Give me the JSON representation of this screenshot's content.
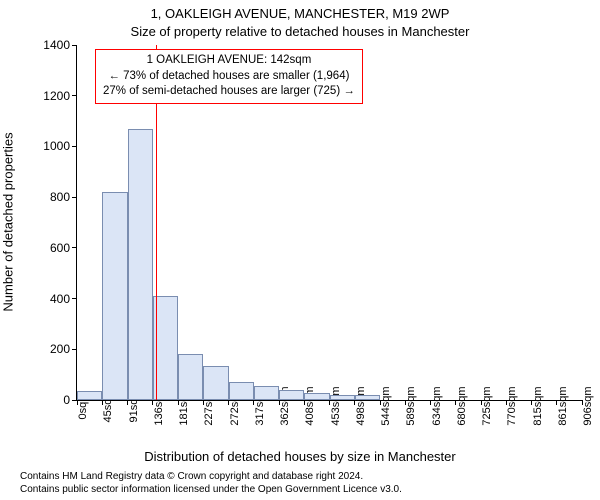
{
  "header": {
    "line1": "1, OAKLEIGH AVENUE, MANCHESTER, M19 2WP",
    "line2": "Size of property relative to detached houses in Manchester"
  },
  "chart": {
    "type": "histogram",
    "background_color": "#ffffff",
    "axis_color": "#000000",
    "ylabel": "Number of detached properties",
    "xlabel": "Distribution of detached houses by size in Manchester",
    "ylabel_fontsize": 13,
    "xlabel_fontsize": 13,
    "title_fontsize": 13,
    "tick_fontsize": 12,
    "xtick_fontsize": 11,
    "ylim": [
      0,
      1400
    ],
    "yticks": [
      0,
      200,
      400,
      600,
      800,
      1000,
      1200,
      1400
    ],
    "xticks": [
      "0sqm",
      "45sqm",
      "91sqm",
      "136sqm",
      "181sqm",
      "227sqm",
      "272sqm",
      "317sqm",
      "362sqm",
      "408sqm",
      "453sqm",
      "498sqm",
      "544sqm",
      "589sqm",
      "634sqm",
      "680sqm",
      "725sqm",
      "770sqm",
      "815sqm",
      "861sqm",
      "906sqm"
    ],
    "xtick_rotation": -90,
    "bar_fill": "#dbe5f6",
    "bar_stroke": "#7a8db0",
    "bar_stroke_width": 1,
    "bars": [
      35,
      820,
      1070,
      410,
      180,
      135,
      70,
      55,
      38,
      28,
      20,
      18,
      0,
      0,
      0,
      0,
      0,
      0,
      0,
      0
    ],
    "marker": {
      "value_sqm": 142,
      "line_color": "#ff0000",
      "line_width": 1
    },
    "annotation": {
      "border_color": "#ff0000",
      "text_color": "#000000",
      "bg_color": "#ffffff",
      "fontsize": 11.5,
      "line1": "1 OAKLEIGH AVENUE: 142sqm",
      "line2": "← 73% of detached houses are smaller (1,964)",
      "line3": "27% of semi-detached houses are larger (725) →"
    }
  },
  "footer": {
    "line1": "Contains HM Land Registry data © Crown copyright and database right 2024.",
    "line2": "Contains public sector information licensed under the Open Government Licence v3.0."
  }
}
